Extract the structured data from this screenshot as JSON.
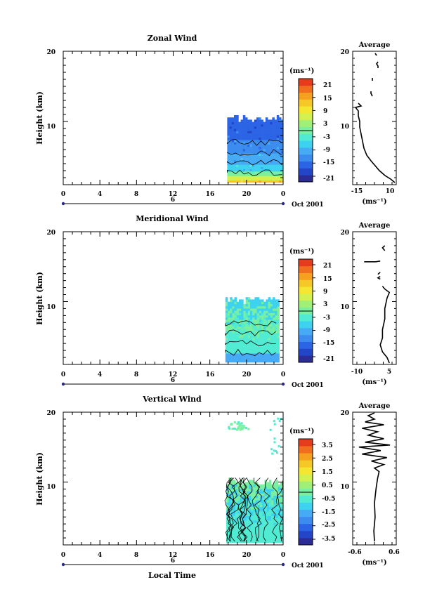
{
  "page": {
    "x_title": "Local Time",
    "height_label": "Height (km)",
    "unit_label": "(ms⁻¹)",
    "average_title": "Average",
    "date_label": "Oct 2001",
    "day_label": "6"
  },
  "colors": {
    "scale": [
      "#2c2c96",
      "#2346c8",
      "#2c64e6",
      "#3c8cf0",
      "#46aaf5",
      "#3cd2f0",
      "#50ebd2",
      "#78f0a0",
      "#a0f078",
      "#d2f050",
      "#f5e632",
      "#f5c828",
      "#f5a01e",
      "#f06e1e",
      "#e63c1e"
    ]
  },
  "chart_data": [
    {
      "type": "heatmap",
      "title": "Zonal Wind",
      "xlabel": "",
      "ylabel": "Height (km)",
      "xlim": [
        0,
        24
      ],
      "ylim": [
        1,
        20
      ],
      "x_ticks": [
        "0",
        "4",
        "8",
        "12",
        "16",
        "20",
        "0"
      ],
      "y_ticks": [
        "10",
        "20"
      ],
      "data_x_range": [
        17.9,
        24
      ],
      "data_top_km": 10.8,
      "colorbar": {
        "ticks": [
          "21",
          "15",
          "9",
          "3",
          "-3",
          "-9",
          "-15",
          "-21"
        ],
        "range": [
          -24,
          24
        ]
      },
      "profile": {
        "title": "Average",
        "xlabel": "(ms⁻¹)",
        "xlim": [
          -19,
          12
        ],
        "x_ticks": [
          "-15",
          "10"
        ],
        "y_ticks": [
          "10",
          "20"
        ],
        "points": [
          [
            11,
            1.3
          ],
          [
            8,
            1.8
          ],
          [
            4,
            2.3
          ],
          [
            0,
            3
          ],
          [
            -3,
            3.7
          ],
          [
            -6,
            4.4
          ],
          [
            -9,
            5.2
          ],
          [
            -11,
            6.2
          ],
          [
            -12,
            7.2
          ],
          [
            -13,
            8.2
          ],
          [
            -14,
            9.2
          ],
          [
            -14,
            10
          ],
          [
            -15,
            10.8
          ],
          [
            -15,
            11.5
          ],
          [
            -17,
            12
          ],
          [
            -13,
            12.2
          ],
          [
            -15,
            12.6
          ]
        ],
        "fragments": [
          [
            [
              -6,
              14.3
            ],
            [
              -6,
              14.0
            ],
            [
              -5,
              13.6
            ]
          ],
          [
            [
              -5,
              16.2
            ],
            [
              -5,
              15.8
            ]
          ],
          [
            [
              -1,
              18.5
            ],
            [
              -2,
              18.2
            ],
            [
              -1,
              17.9
            ],
            [
              -1,
              17.6
            ]
          ],
          [
            [
              -3,
              19.7
            ],
            [
              -2,
              19.4
            ]
          ]
        ]
      }
    },
    {
      "type": "heatmap",
      "title": "Meridional Wind",
      "xlabel": "",
      "ylabel": "Height (km)",
      "xlim": [
        0,
        24
      ],
      "ylim": [
        1,
        20
      ],
      "x_ticks": [
        "0",
        "4",
        "8",
        "12",
        "16",
        "20",
        "0"
      ],
      "y_ticks": [
        "10",
        "20"
      ],
      "data_x_range": [
        17.7,
        23.5
      ],
      "data_top_km": 10.6,
      "colorbar": {
        "ticks": [
          "21",
          "15",
          "9",
          "3",
          "-3",
          "-9",
          "-15",
          "-21"
        ],
        "range": [
          -24,
          24
        ]
      },
      "profile": {
        "title": "Average",
        "xlabel": "(ms⁻¹)",
        "xlim": [
          -12,
          7
        ],
        "x_ticks": [
          "-10",
          "5"
        ],
        "y_ticks": [
          "10",
          "20"
        ],
        "points": [
          [
            4,
            1.2
          ],
          [
            3,
            2
          ],
          [
            1,
            2.8
          ],
          [
            0,
            3.8
          ],
          [
            1,
            4.8
          ],
          [
            1,
            6
          ],
          [
            2,
            7.5
          ],
          [
            2,
            9
          ],
          [
            3,
            10.5
          ],
          [
            4,
            11.3
          ],
          [
            2,
            11.8
          ],
          [
            1,
            12.2
          ]
        ],
        "fragments": [
          [
            [
              0,
              13.2
            ],
            [
              -1,
              13.4
            ],
            [
              0,
              13.6
            ]
          ],
          [
            [
              -1,
              13.9
            ],
            [
              0,
              14.2
            ]
          ],
          [
            [
              -7,
              15.7
            ],
            [
              -2,
              15.7
            ],
            [
              0,
              15.8
            ]
          ],
          [
            [
              2,
              17.3
            ],
            [
              1,
              17.7
            ],
            [
              2,
              18.0
            ]
          ]
        ]
      }
    },
    {
      "type": "heatmap",
      "title": "Vertical Wind",
      "xlabel": "Local Time",
      "ylabel": "Height (km)",
      "xlim": [
        0,
        24
      ],
      "ylim": [
        1,
        20
      ],
      "x_ticks": [
        "0",
        "4",
        "8",
        "12",
        "16",
        "20",
        "0"
      ],
      "y_ticks": [
        "10",
        "20"
      ],
      "data_x_range": [
        17.8,
        24
      ],
      "data_top_km": 10.4,
      "colorbar": {
        "ticks": [
          "3.5",
          "2.5",
          "1.5",
          "0.5",
          "-0.5",
          "-1.5",
          "-2.5",
          "-3.5"
        ],
        "range": [
          -4,
          4
        ]
      },
      "profile": {
        "title": "Average",
        "xlabel": "(ms⁻¹)",
        "xlim": [
          -0.8,
          0.6
        ],
        "x_ticks": [
          "-0.6",
          "0.6"
        ],
        "y_ticks": [
          "10",
          "20"
        ],
        "points": [
          [
            -0.1,
            1.5
          ],
          [
            -0.12,
            3
          ],
          [
            -0.08,
            5
          ],
          [
            -0.1,
            7
          ],
          [
            -0.05,
            9
          ],
          [
            0,
            10.5
          ],
          [
            0.05,
            11.5
          ],
          [
            -0.1,
            12
          ],
          [
            0.2,
            12.5
          ],
          [
            -0.2,
            13
          ],
          [
            0.3,
            13.5
          ],
          [
            -0.5,
            14
          ],
          [
            0.1,
            14.5
          ],
          [
            -0.6,
            15
          ],
          [
            0.4,
            15.3
          ],
          [
            -0.4,
            15.7
          ],
          [
            0.2,
            16.2
          ],
          [
            -0.3,
            16.7
          ],
          [
            0,
            17.2
          ],
          [
            -0.5,
            17.7
          ],
          [
            0.2,
            18.2
          ],
          [
            -0.4,
            18.6
          ],
          [
            -0.1,
            19
          ],
          [
            -0.3,
            19.5
          ],
          [
            -0.1,
            19.9
          ]
        ],
        "fragments": []
      }
    }
  ]
}
